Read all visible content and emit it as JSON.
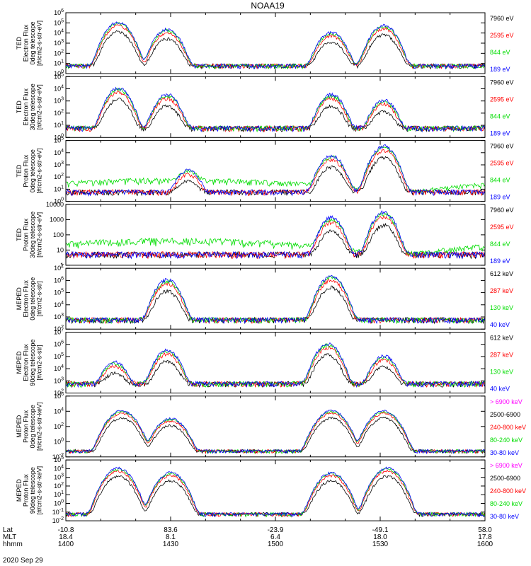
{
  "title": "NOAA19",
  "date": "2020 Sep 29",
  "colors": {
    "black": "#000000",
    "red": "#ff0000",
    "green": "#00dd00",
    "blue": "#0000ff",
    "magenta": "#ff00ff"
  },
  "xaxis": {
    "row_labels": [
      "Lat",
      "MLT",
      "hhmm"
    ],
    "ticks": [
      {
        "hhmm": "1400",
        "lat": "-10.8",
        "mlt": "18.4"
      },
      {
        "hhmm": "1430",
        "lat": "83.6",
        "mlt": "8.1"
      },
      {
        "hhmm": "1500",
        "lat": "-23.9",
        "mlt": "6.4"
      },
      {
        "hhmm": "1530",
        "lat": "-49.1",
        "mlt": "18.0"
      },
      {
        "hhmm": "1600",
        "lat": "58.0",
        "mlt": "17.8"
      }
    ]
  },
  "chart_data": [
    {
      "type": "line",
      "title": "TED Electron Flux 0deg telescope",
      "ylabel": [
        "TED",
        "Electron Flux",
        "0deg telescope",
        "[#/cm2-s-str-eV]"
      ],
      "yscale": "log",
      "ylim": [
        1,
        1000000
      ],
      "yticks": [
        "10^0",
        "10^1",
        "10^2",
        "10^3",
        "10^4",
        "10^5",
        "10^6"
      ],
      "legend": [
        {
          "label": "7960 eV",
          "color": "black"
        },
        {
          "label": "2595 eV",
          "color": "red"
        },
        {
          "label": "844 eV",
          "color": "green"
        },
        {
          "label": "189 eV",
          "color": "blue"
        }
      ],
      "peaks": [
        {
          "x": "1415",
          "y": 100000
        },
        {
          "x": "1429",
          "y": 20000
        },
        {
          "x": "1516",
          "y": 10000
        },
        {
          "x": "1531",
          "y": 50000
        }
      ]
    },
    {
      "type": "line",
      "title": "TED Electron Flux 30deg telescope",
      "ylabel": [
        "TED",
        "Electron Flux",
        "30deg telescope",
        "[#/cm2-s-str-eV]"
      ],
      "yscale": "log",
      "ylim": [
        1,
        100000
      ],
      "yticks": [
        "10^0",
        "10^1",
        "10^2",
        "10^3",
        "10^4",
        "10^5"
      ],
      "legend": [
        {
          "label": "7960 eV",
          "color": "black"
        },
        {
          "label": "2595 eV",
          "color": "red"
        },
        {
          "label": "844 eV",
          "color": "green"
        },
        {
          "label": "189 eV",
          "color": "blue"
        }
      ],
      "peaks": [
        {
          "x": "1415",
          "y": 10000
        },
        {
          "x": "1429",
          "y": 3000
        },
        {
          "x": "1516",
          "y": 3000
        },
        {
          "x": "1531",
          "y": 1000
        }
      ]
    },
    {
      "type": "line",
      "title": "TED Proton Flux 0deg telescope",
      "ylabel": [
        "TED",
        "Proton Flux",
        "0deg telescope",
        "[#/cm2-s-str-eV]"
      ],
      "yscale": "log",
      "ylim": [
        1,
        100000
      ],
      "yticks": [
        "10^0",
        "10^1",
        "10^2",
        "10^3",
        "10^4",
        "10^5"
      ],
      "legend": [
        {
          "label": "7960 eV",
          "color": "black"
        },
        {
          "label": "2595 eV",
          "color": "red"
        },
        {
          "label": "844 eV",
          "color": "green"
        },
        {
          "label": "189 eV",
          "color": "blue"
        }
      ],
      "peaks": [
        {
          "x": "1435",
          "y": 300
        },
        {
          "x": "1516",
          "y": 5000
        },
        {
          "x": "1531",
          "y": 30000
        }
      ]
    },
    {
      "type": "line",
      "title": "TED Proton Flux 30deg telescope",
      "ylabel": [
        "TED",
        "Proton Flux",
        "30deg telescope",
        "[#/cm2-s-str-eV]"
      ],
      "yscale": "log",
      "ylim": [
        1,
        20000
      ],
      "yticks": [
        "1",
        "10",
        "100",
        "1000",
        "10000"
      ],
      "legend": [
        {
          "label": "7960 eV",
          "color": "black"
        },
        {
          "label": "2595 eV",
          "color": "red"
        },
        {
          "label": "844 eV",
          "color": "green"
        },
        {
          "label": "189 eV",
          "color": "blue"
        }
      ],
      "peaks": [
        {
          "x": "1516",
          "y": 2000
        },
        {
          "x": "1531",
          "y": 5000
        }
      ]
    },
    {
      "type": "line",
      "title": "MEPED Electron Flux 0deg telescope",
      "ylabel": [
        "MEPED",
        "Electron Flux",
        "0deg telescope",
        "[#/cm2-s-str]"
      ],
      "yscale": "log",
      "ylim": [
        100,
        10000000
      ],
      "yticks": [
        "10^2",
        "10^3",
        "10^4",
        "10^5",
        "10^6",
        "10^7"
      ],
      "legend": [
        {
          "label": "612 keV",
          "color": "black"
        },
        {
          "label": "287 keV",
          "color": "red"
        },
        {
          "label": "130 keV",
          "color": "green"
        },
        {
          "label": "40 keV",
          "color": "blue"
        }
      ],
      "peaks": [
        {
          "x": "1429",
          "y": 1000000
        },
        {
          "x": "1516",
          "y": 2000000
        }
      ]
    },
    {
      "type": "line",
      "title": "MEPED Electron Flux 90deg telescope",
      "ylabel": [
        "MEPED",
        "Electron Flux",
        "90deg telescope",
        "[#/cm2-s-str]"
      ],
      "yscale": "log",
      "ylim": [
        100,
        10000000
      ],
      "yticks": [
        "10^2",
        "10^3",
        "10^4",
        "10^5",
        "10^6",
        "10^7"
      ],
      "legend": [
        {
          "label": "612 keV",
          "color": "black"
        },
        {
          "label": "287 keV",
          "color": "red"
        },
        {
          "label": "130 keV",
          "color": "green"
        },
        {
          "label": "40 keV",
          "color": "blue"
        }
      ],
      "peaks": [
        {
          "x": "1414",
          "y": 30000
        },
        {
          "x": "1429",
          "y": 300000
        },
        {
          "x": "1515",
          "y": 1000000
        },
        {
          "x": "1531",
          "y": 100000
        }
      ]
    },
    {
      "type": "line",
      "title": "MEPED Proton Flux 0deg telescope",
      "ylabel": [
        "MEPED",
        "Proton Flux",
        "0deg telescope",
        "[#/cm2-s-str-keV]"
      ],
      "yscale": "log",
      "ylim": [
        0.01,
        1000000
      ],
      "yticks": [
        "10^-2",
        "10^0",
        "10^2",
        "10^4",
        "10^6"
      ],
      "legend": [
        {
          "label": "> 6900 keV",
          "color": "magenta"
        },
        {
          "label": "2500-6900",
          "color": "black"
        },
        {
          "label": "240-800 keV",
          "color": "red"
        },
        {
          "label": "80-240 keV",
          "color": "green"
        },
        {
          "label": "30-80 keV",
          "color": "blue"
        }
      ],
      "peaks": [
        {
          "x": "1416",
          "y": 10000
        },
        {
          "x": "1430",
          "y": 1000
        },
        {
          "x": "1516",
          "y": 10000
        },
        {
          "x": "1531",
          "y": 10000
        }
      ]
    },
    {
      "type": "line",
      "title": "MEPED Proton Flux 90deg telescope",
      "ylabel": [
        "MEPED",
        "Proton Flux",
        "90deg telescope",
        "[#/cm2-s-str-keV]"
      ],
      "yscale": "log",
      "ylim": [
        0.01,
        100000
      ],
      "yticks": [
        "10^-2",
        "10^-1",
        "10^0",
        "10^1",
        "10^2",
        "10^3",
        "10^4",
        "10^5"
      ],
      "legend": [
        {
          "label": "> 6900 keV",
          "color": "magenta"
        },
        {
          "label": "2500-6900",
          "color": "black"
        },
        {
          "label": "240-800 keV",
          "color": "red"
        },
        {
          "label": "80-240 keV",
          "color": "green"
        },
        {
          "label": "30-80 keV",
          "color": "blue"
        }
      ],
      "peaks": [
        {
          "x": "1415",
          "y": 10000
        },
        {
          "x": "1430",
          "y": 3000
        },
        {
          "x": "1516",
          "y": 3000
        },
        {
          "x": "1532",
          "y": 10000
        }
      ]
    }
  ]
}
